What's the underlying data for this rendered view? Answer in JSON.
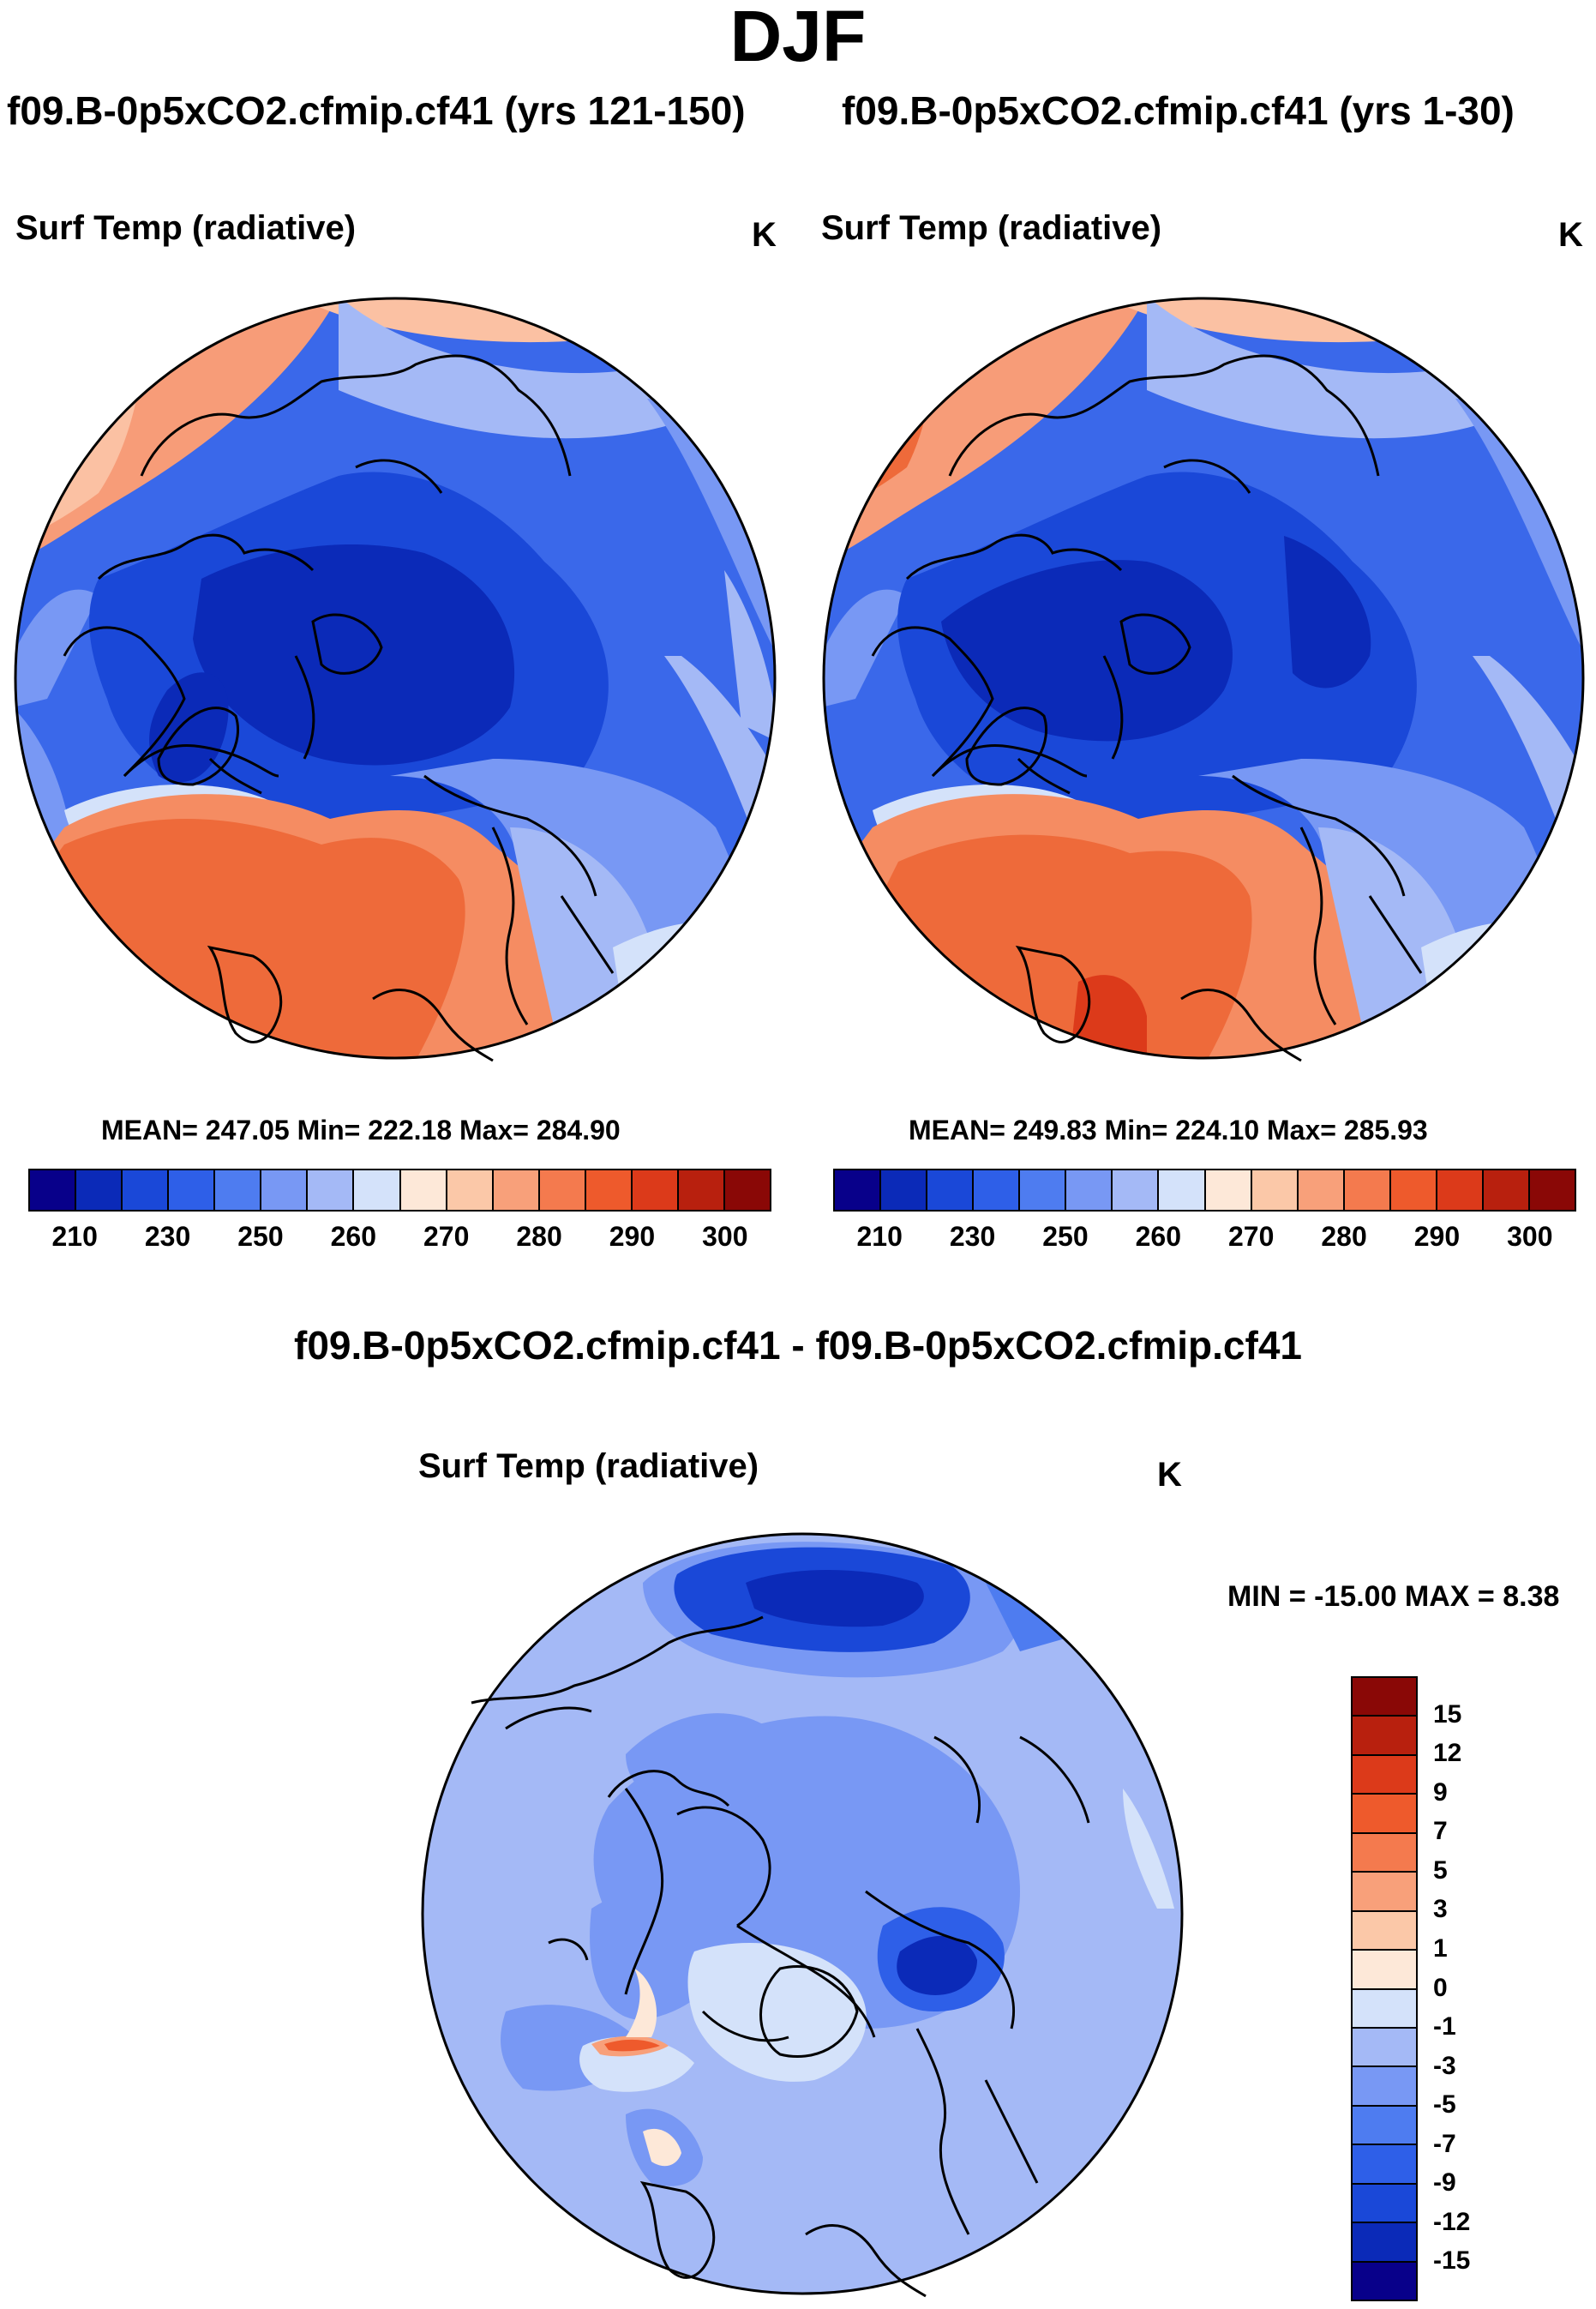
{
  "title": "DJF",
  "panels": [
    {
      "case_title": "f09.B-0p5xCO2.cfmip.cf41 (yrs 121-150)",
      "variable": "Surf Temp (radiative)",
      "units": "K",
      "stats": "MEAN= 247.05  Min= 222.18  Max= 284.90"
    },
    {
      "case_title": "f09.B-0p5xCO2.cfmip.cf41 (yrs 1-30)",
      "variable": "Surf Temp (radiative)",
      "units": "K",
      "stats": "MEAN= 249.83  Min= 224.10  Max= 285.93"
    }
  ],
  "difference": {
    "title": "f09.B-0p5xCO2.cfmip.cf41 - f09.B-0p5xCO2.cfmip.cf41",
    "variable": "Surf Temp (radiative)",
    "units": "K",
    "stats": "MIN = -15.00 MAX =   8.38"
  },
  "colorbar_abs": {
    "labels": [
      "210",
      "230",
      "250",
      "260",
      "270",
      "280",
      "290",
      "300"
    ],
    "colors": [
      "#08008a",
      "#0b2ab8",
      "#1a48d8",
      "#2e5fe8",
      "#4e7cf0",
      "#7898f4",
      "#a4b9f6",
      "#d4e2fa",
      "#fde8d8",
      "#fbc8a8",
      "#f8a07a",
      "#f47a4e",
      "#ee5a2c",
      "#dc3a1a",
      "#b8200e",
      "#8a0806"
    ]
  },
  "colorbar_diff": {
    "labels": [
      "15",
      "12",
      "9",
      "7",
      "5",
      "3",
      "1",
      "0",
      "-1",
      "-3",
      "-5",
      "-7",
      "-9",
      "-12",
      "-15"
    ],
    "colors": [
      "#8a0806",
      "#b8200e",
      "#dc3a1a",
      "#ee5a2c",
      "#f47a4e",
      "#f8a07a",
      "#fbc8a8",
      "#fde8d8",
      "#d4e2fa",
      "#a4b9f6",
      "#7898f4",
      "#4e7cf0",
      "#2e5fe8",
      "#1a48d8",
      "#0b2ab8",
      "#08008a"
    ]
  }
}
